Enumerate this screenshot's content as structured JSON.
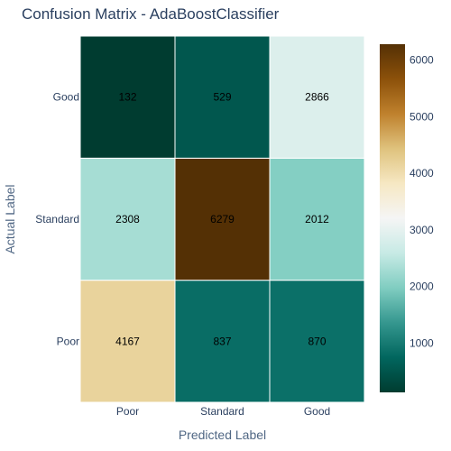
{
  "chart_data": {
    "type": "heatmap",
    "title": "Confusion Matrix - AdaBoostClassifier",
    "xlabel": "Predicted Label",
    "ylabel": "Actual Label",
    "x_categories": [
      "Poor",
      "Standard",
      "Good"
    ],
    "y_categories": [
      "Poor",
      "Standard",
      "Good"
    ],
    "values": [
      [
        4167,
        837,
        870
      ],
      [
        2308,
        6279,
        2012
      ],
      [
        132,
        529,
        2866
      ]
    ],
    "colorscale": "BrBG",
    "colorbar": {
      "range": [
        132,
        6279
      ],
      "ticks": [
        1000,
        2000,
        3000,
        4000,
        5000,
        6000
      ]
    },
    "grid": true,
    "legend": "colorbar-right"
  }
}
